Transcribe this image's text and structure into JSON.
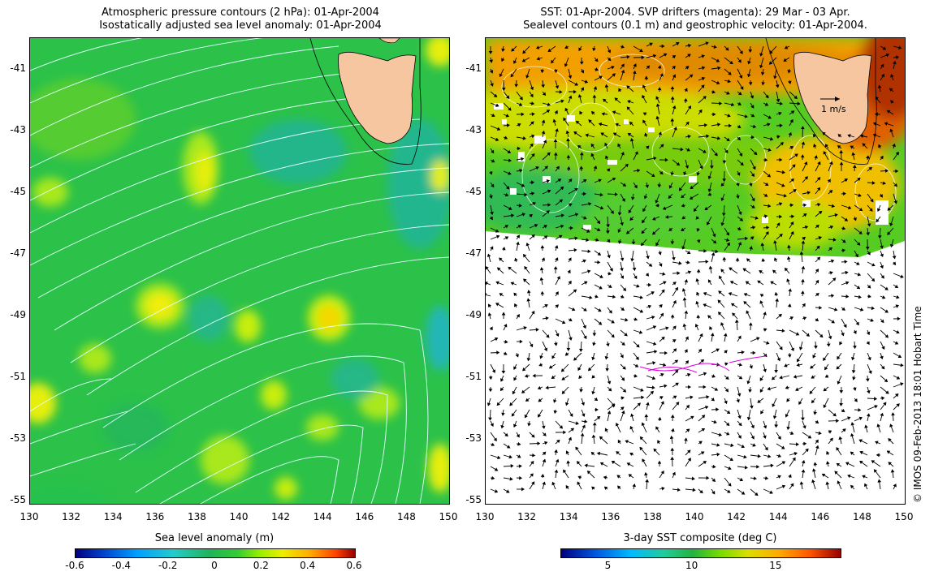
{
  "left_panel": {
    "title_line1": "Atmospheric pressure contours (2 hPa): 01-Apr-2004",
    "title_line2": "Isostatically adjusted sea level anomaly: 01-Apr-2004",
    "colorbar_label": "Sea level anomaly (m)",
    "colorbar_ticks": [
      "-0.6",
      "-0.4",
      "-0.2",
      "0",
      "0.2",
      "0.4",
      "0.6"
    ]
  },
  "right_panel": {
    "title_line1": "SST: 01-Apr-2004. SVP drifters (magenta): 29 Mar - 03 Apr.",
    "title_line2": "Sealevel contours (0.1 m) and geostrophic velocity: 01-Apr-2004.",
    "velocity_scale_label": "1 m/s",
    "colorbar_label": "3-day SST composite (deg C)",
    "colorbar_ticks": [
      "5",
      "10",
      "15"
    ]
  },
  "axes": {
    "lat_ticks": [
      "-41",
      "-43",
      "-45",
      "-47",
      "-49",
      "-51",
      "-53",
      "-55"
    ],
    "lon_ticks": [
      "130",
      "132",
      "134",
      "136",
      "138",
      "140",
      "142",
      "144",
      "146",
      "148",
      "150"
    ]
  },
  "copyright": "© IMOS 09-Feb-2013 18:01 Hobart Time",
  "colors": {
    "land": "#f5c6a0",
    "pressure_contour": "#e8ffff",
    "drifter": "#dd00dd"
  }
}
